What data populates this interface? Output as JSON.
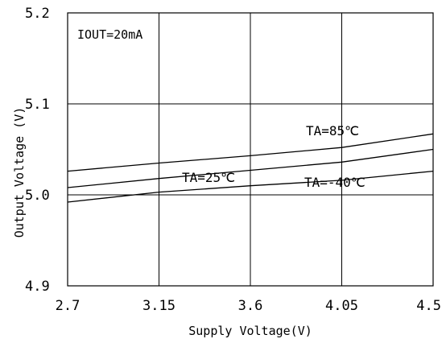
{
  "chart_data": {
    "type": "line",
    "xlabel": "Supply Voltage(V)",
    "ylabel": "Output Voltage  (V)",
    "annotation": "IOUT=20mA",
    "xlim": [
      2.7,
      4.5
    ],
    "ylim": [
      4.9,
      5.2
    ],
    "x_ticks": [
      "2.7",
      "3.15",
      "3.6",
      "4.05",
      "4.5"
    ],
    "y_ticks": [
      "4.9",
      "5.0",
      "5.1",
      "5.2"
    ],
    "grid": true,
    "series": [
      {
        "name": "TA=85℃",
        "x": [
          2.7,
          3.15,
          3.6,
          4.05,
          4.5
        ],
        "y": [
          5.026,
          5.035,
          5.043,
          5.052,
          5.067
        ]
      },
      {
        "name": "TA=25℃",
        "x": [
          2.7,
          3.15,
          3.6,
          4.05,
          4.5
        ],
        "y": [
          5.008,
          5.018,
          5.027,
          5.036,
          5.05
        ]
      },
      {
        "name": "TA=-40℃",
        "x": [
          2.7,
          3.15,
          3.6,
          4.05,
          4.5
        ],
        "y": [
          4.992,
          5.003,
          5.01,
          5.016,
          5.026
        ]
      }
    ],
    "line_color": "#000000",
    "grid_color": "#000000"
  }
}
